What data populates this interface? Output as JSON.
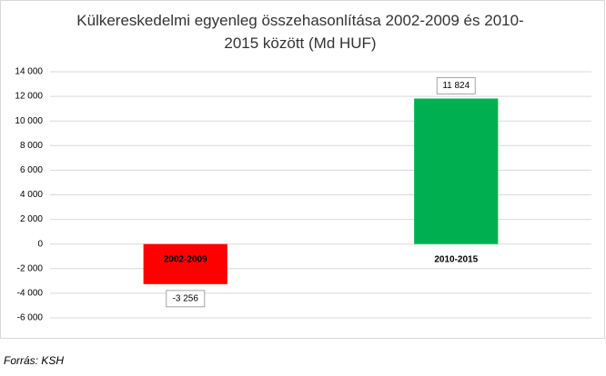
{
  "chart_data": {
    "type": "bar",
    "title": "Külkereskedelmi egyenleg összehasonlítása 2002-2009 és 2010-2015 között (Md HUF)",
    "categories": [
      "2002-2009",
      "2010-2015"
    ],
    "values": [
      -3256,
      11824
    ],
    "value_labels": [
      "-3 256",
      "11 824"
    ],
    "colors": [
      "#ff0000",
      "#00b050"
    ],
    "ylim": [
      -6000,
      14000
    ],
    "yticks": [
      {
        "value": -6000,
        "label": "-6 000"
      },
      {
        "value": -4000,
        "label": "-4 000"
      },
      {
        "value": -2000,
        "label": "-2 000"
      },
      0,
      {
        "value": 2000,
        "label": "2 000"
      },
      {
        "value": 4000,
        "label": "4 000"
      },
      {
        "value": 6000,
        "label": "6 000"
      },
      {
        "value": 8000,
        "label": "8 000"
      },
      {
        "value": 10000,
        "label": "10 000"
      },
      {
        "value": 12000,
        "label": "12 000"
      },
      {
        "value": 14000,
        "label": "14 000"
      }
    ],
    "grid": true
  },
  "source": "Forrás: KSH"
}
